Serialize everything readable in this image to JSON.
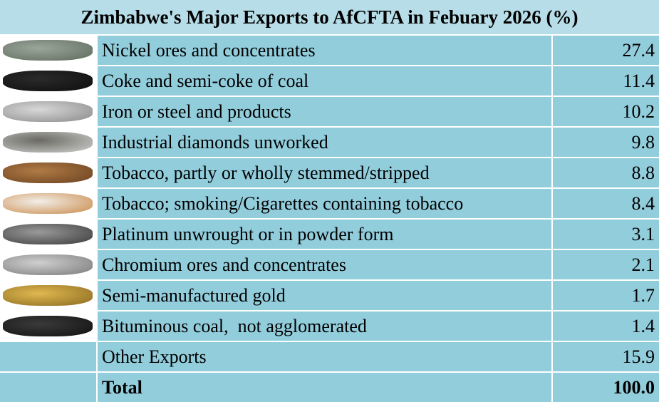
{
  "title": "Zimbabwe's Major Exports to AfCFTA in Febuary 2026 (%)",
  "rows": [
    {
      "label": "Nickel ores and concentrates",
      "value": "27.4"
    },
    {
      "label": "Coke and semi-coke of coal",
      "value": "11.4"
    },
    {
      "label": "Iron or steel and products",
      "value": "10.2"
    },
    {
      "label": "Industrial diamonds unworked",
      "value": "9.8"
    },
    {
      "label": "Tobacco, partly or wholly stemmed/stripped",
      "value": "8.8"
    },
    {
      "label": "Tobacco; smoking/Cigarettes containing tobacco",
      "value": "8.4"
    },
    {
      "label": "Platinum unwrought or in powder form",
      "value": "3.1"
    },
    {
      "label": "Chromium ores and concentrates",
      "value": "2.1"
    },
    {
      "label": "Semi-manufactured gold",
      "value": "1.7"
    },
    {
      "label": "Bituminous coal,  not agglomerated",
      "value": "1.4"
    },
    {
      "label": "Other Exports",
      "value": "15.9"
    }
  ],
  "total": {
    "label": "Total",
    "value": "100.0"
  }
}
